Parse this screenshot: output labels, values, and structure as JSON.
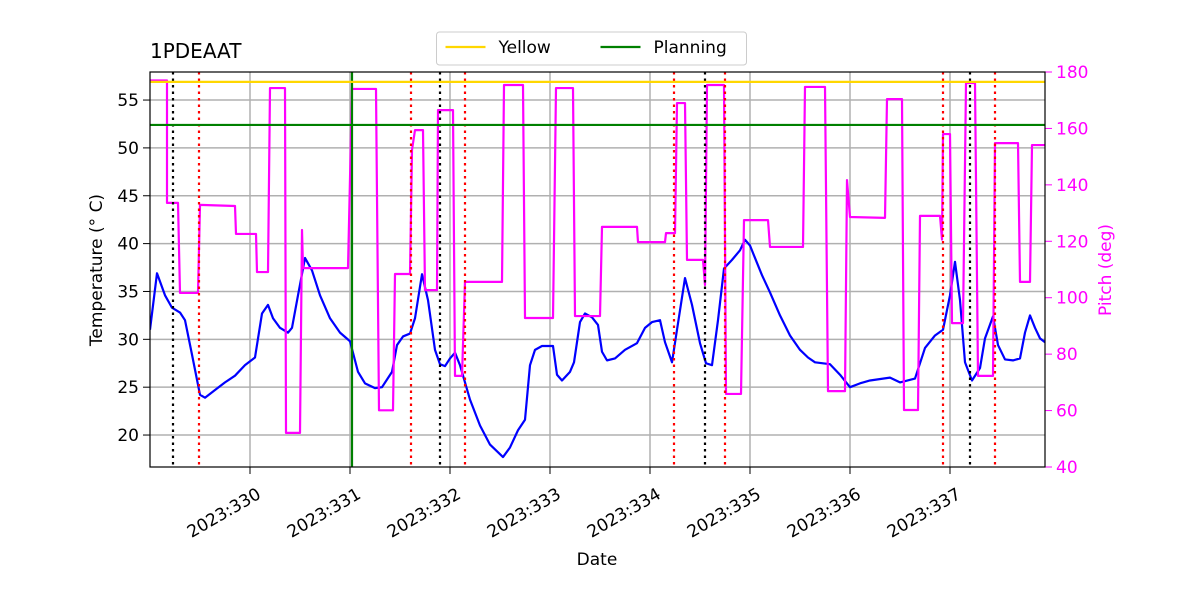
{
  "chart_data": {
    "type": "line",
    "title": "1PDEAAT",
    "xlabel": "Date",
    "ylabel": "Temperature ($^\\circ$C)",
    "y2label": "Pitch (deg)",
    "y2color": "#ff00ff",
    "grid": true,
    "legend": "upper center",
    "xlim": [
      329.0,
      337.95
    ],
    "xticks": [
      {
        "value": 330,
        "label": "2023:330"
      },
      {
        "value": 331,
        "label": "2023:331"
      },
      {
        "value": 332,
        "label": "2023:332"
      },
      {
        "value": 333,
        "label": "2023:333"
      },
      {
        "value": 334,
        "label": "2023:334"
      },
      {
        "value": 335,
        "label": "2023:335"
      },
      {
        "value": 336,
        "label": "2023:336"
      },
      {
        "value": 337,
        "label": "2023:337"
      }
    ],
    "ylim": [
      16.66,
      57.93
    ],
    "yticks": [
      20,
      25,
      30,
      35,
      40,
      45,
      50,
      55
    ],
    "y2lim": [
      40,
      180
    ],
    "y2ticks": [
      40,
      60,
      80,
      100,
      120,
      140,
      160,
      180
    ],
    "series": [
      {
        "color": "#0000ff",
        "x": [
          329.0,
          329.07,
          329.15,
          329.22,
          329.3,
          329.35,
          329.42,
          329.5,
          329.55,
          329.65,
          329.75,
          329.85,
          329.95,
          330.05,
          330.12,
          330.18,
          330.23,
          330.3,
          330.38,
          330.42,
          330.48,
          330.55,
          330.62,
          330.7,
          330.8,
          330.9,
          331.0,
          331.08,
          331.15,
          331.25,
          331.32,
          331.42,
          331.47,
          331.53,
          331.6,
          331.65,
          331.72,
          331.78,
          331.85,
          331.9,
          331.95,
          332.0,
          332.05,
          332.1,
          332.2,
          332.3,
          332.4,
          332.53,
          332.6,
          332.68,
          332.75,
          332.8,
          332.85,
          332.92,
          333.03,
          333.07,
          333.12,
          333.2,
          333.24,
          333.3,
          333.35,
          333.42,
          333.48,
          333.52,
          333.57,
          333.65,
          333.75,
          333.87,
          333.95,
          334.02,
          334.1,
          334.15,
          334.22,
          334.27,
          334.35,
          334.42,
          334.5,
          334.56,
          334.62,
          334.68,
          334.74,
          334.82,
          334.9,
          334.95,
          335.0,
          335.05,
          335.12,
          335.2,
          335.3,
          335.4,
          335.5,
          335.58,
          335.65,
          335.8,
          335.9,
          336.0,
          336.1,
          336.2,
          336.4,
          336.5,
          336.65,
          336.75,
          336.85,
          336.93,
          337.0,
          337.05,
          337.1,
          337.15,
          337.22,
          337.3,
          337.35,
          337.43,
          337.48,
          337.55,
          337.63,
          337.7,
          337.75,
          337.8,
          337.85,
          337.9,
          337.95
        ],
        "values": [
          31.0,
          36.9,
          34.6,
          33.3,
          32.8,
          32.0,
          28.4,
          24.2,
          23.9,
          24.7,
          25.5,
          26.2,
          27.3,
          28.1,
          32.7,
          33.6,
          32.2,
          31.2,
          30.7,
          31.2,
          34.6,
          38.5,
          37.2,
          34.6,
          32.2,
          30.7,
          29.8,
          26.6,
          25.4,
          24.9,
          25.0,
          26.6,
          29.4,
          30.3,
          30.6,
          32.2,
          36.8,
          34.1,
          28.9,
          27.4,
          27.2,
          28.0,
          28.6,
          27.3,
          23.7,
          21.0,
          19.0,
          17.7,
          18.7,
          20.5,
          21.6,
          27.3,
          28.9,
          29.3,
          29.3,
          26.3,
          25.7,
          26.6,
          27.6,
          31.8,
          32.7,
          32.3,
          31.5,
          28.7,
          27.8,
          28.0,
          28.9,
          29.6,
          31.2,
          31.8,
          32.0,
          29.7,
          27.6,
          31.0,
          36.4,
          33.6,
          29.6,
          27.5,
          27.3,
          32.0,
          37.4,
          38.3,
          39.3,
          40.4,
          39.8,
          38.5,
          36.7,
          34.9,
          32.5,
          30.4,
          28.9,
          28.1,
          27.6,
          27.4,
          26.3,
          25.0,
          25.4,
          25.7,
          26.0,
          25.5,
          25.9,
          29.1,
          30.4,
          31.0,
          34.6,
          38.1,
          34.1,
          27.6,
          25.7,
          27.0,
          30.1,
          32.4,
          29.4,
          27.9,
          27.8,
          28.0,
          30.7,
          32.5,
          31.2,
          30.1,
          29.7
        ]
      },
      {
        "color": "#ff00ff",
        "axis": "y2",
        "x": [
          329.0,
          329.17,
          329.17,
          329.28,
          329.3,
          329.48,
          329.5,
          329.85,
          329.86,
          330.06,
          330.07,
          330.18,
          330.2,
          330.35,
          330.36,
          330.5,
          330.52,
          330.53,
          330.98,
          331.02,
          331.26,
          331.29,
          331.43,
          331.45,
          331.6,
          331.62,
          331.65,
          331.73,
          331.75,
          331.87,
          331.88,
          332.03,
          332.05,
          332.12,
          332.15,
          332.52,
          332.54,
          332.73,
          332.75,
          333.03,
          333.06,
          333.23,
          333.25,
          333.5,
          333.52,
          333.87,
          333.88,
          334.15,
          334.16,
          334.25,
          334.27,
          334.35,
          334.37,
          334.53,
          334.55,
          334.57,
          334.74,
          334.76,
          334.91,
          334.94,
          335.18,
          335.2,
          335.53,
          335.55,
          335.75,
          335.78,
          335.95,
          335.97,
          336.0,
          336.35,
          336.37,
          336.52,
          336.54,
          336.68,
          336.7,
          336.9,
          336.92,
          336.93,
          337.0,
          337.02,
          337.13,
          337.16,
          337.25,
          337.28,
          337.43,
          337.45,
          337.68,
          337.7,
          337.8,
          337.82,
          337.95
        ],
        "values": [
          177.0,
          177.0,
          133.6,
          133.6,
          101.7,
          101.7,
          132.9,
          132.5,
          122.6,
          122.6,
          109.1,
          109.1,
          174.3,
          174.3,
          52.1,
          52.1,
          124.0,
          110.5,
          110.5,
          174.0,
          174.0,
          60.1,
          60.1,
          108.4,
          108.4,
          152.4,
          159.4,
          159.4,
          102.7,
          102.7,
          166.5,
          166.5,
          72.3,
          72.3,
          105.6,
          105.6,
          175.4,
          175.4,
          92.8,
          92.8,
          174.3,
          174.3,
          93.5,
          93.5,
          125.1,
          125.1,
          119.7,
          119.7,
          122.9,
          122.9,
          169.0,
          169.0,
          113.4,
          113.4,
          104.5,
          175.4,
          175.4,
          65.9,
          65.9,
          127.5,
          127.5,
          118.0,
          118.0,
          174.7,
          174.7,
          66.9,
          66.9,
          141.7,
          128.6,
          128.3,
          170.4,
          170.4,
          60.2,
          60.2,
          129.0,
          129.0,
          120.6,
          158.0,
          158.0,
          91.0,
          91.0,
          176.1,
          176.1,
          72.3,
          72.3,
          154.8,
          154.8,
          105.6,
          105.6,
          154.1,
          154.1
        ]
      }
    ],
    "hlines": [
      {
        "name": "Yellow",
        "color": "#ffd700",
        "value": 56.9
      },
      {
        "name": "Planning",
        "color": "#008000",
        "value": 52.4
      }
    ],
    "vlines": [
      {
        "color": "#000000",
        "style": "dotted",
        "x": [
          329.23,
          331.9,
          334.55,
          337.2
        ]
      },
      {
        "color": "#ff0000",
        "style": "dotted",
        "x": [
          329.49,
          331.61,
          332.15,
          334.24,
          334.75,
          336.93,
          337.45
        ]
      },
      {
        "color": "#008000",
        "style": "solid",
        "x": [
          331.02
        ]
      }
    ]
  }
}
